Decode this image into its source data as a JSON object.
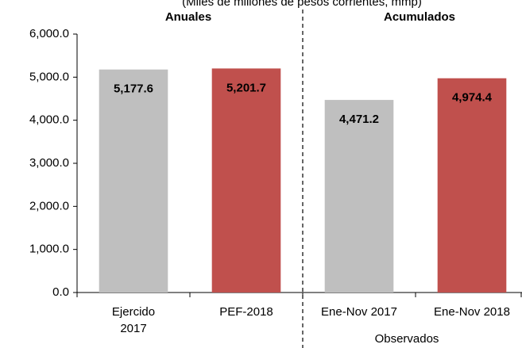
{
  "chart_data": {
    "type": "bar",
    "subtitle": "(Miles de millones de pesos corrientes, mmp)",
    "groups": [
      "Anuales",
      "Acumulados"
    ],
    "group_label": "Observados",
    "categories": [
      "Ejercido\n2017",
      "PEF-2018",
      "Ene-Nov 2017",
      "Ene-Nov 2018"
    ],
    "values": [
      5177.6,
      5201.7,
      4471.2,
      4974.4
    ],
    "value_labels": [
      "5,177.6",
      "5,201.7",
      "4,471.2",
      "4,974.4"
    ],
    "colors": [
      "#bfbfbf",
      "#c0504d",
      "#bfbfbf",
      "#c0504d"
    ],
    "label_colors": [
      "#000000",
      "#ffffff",
      "#000000",
      "#ffffff"
    ],
    "ylim": [
      0,
      6000
    ],
    "yticks": [
      {
        "value": 0,
        "label": "0.0"
      },
      {
        "value": 1000,
        "label": "1,000.0"
      },
      {
        "value": 2000,
        "label": "2,000.0"
      },
      {
        "value": 3000,
        "label": "3,000.0"
      },
      {
        "value": 4000,
        "label": "4,000.0"
      },
      {
        "value": 5000,
        "label": "5,000.0"
      },
      {
        "value": 6000,
        "label": "6,000.0"
      }
    ]
  }
}
